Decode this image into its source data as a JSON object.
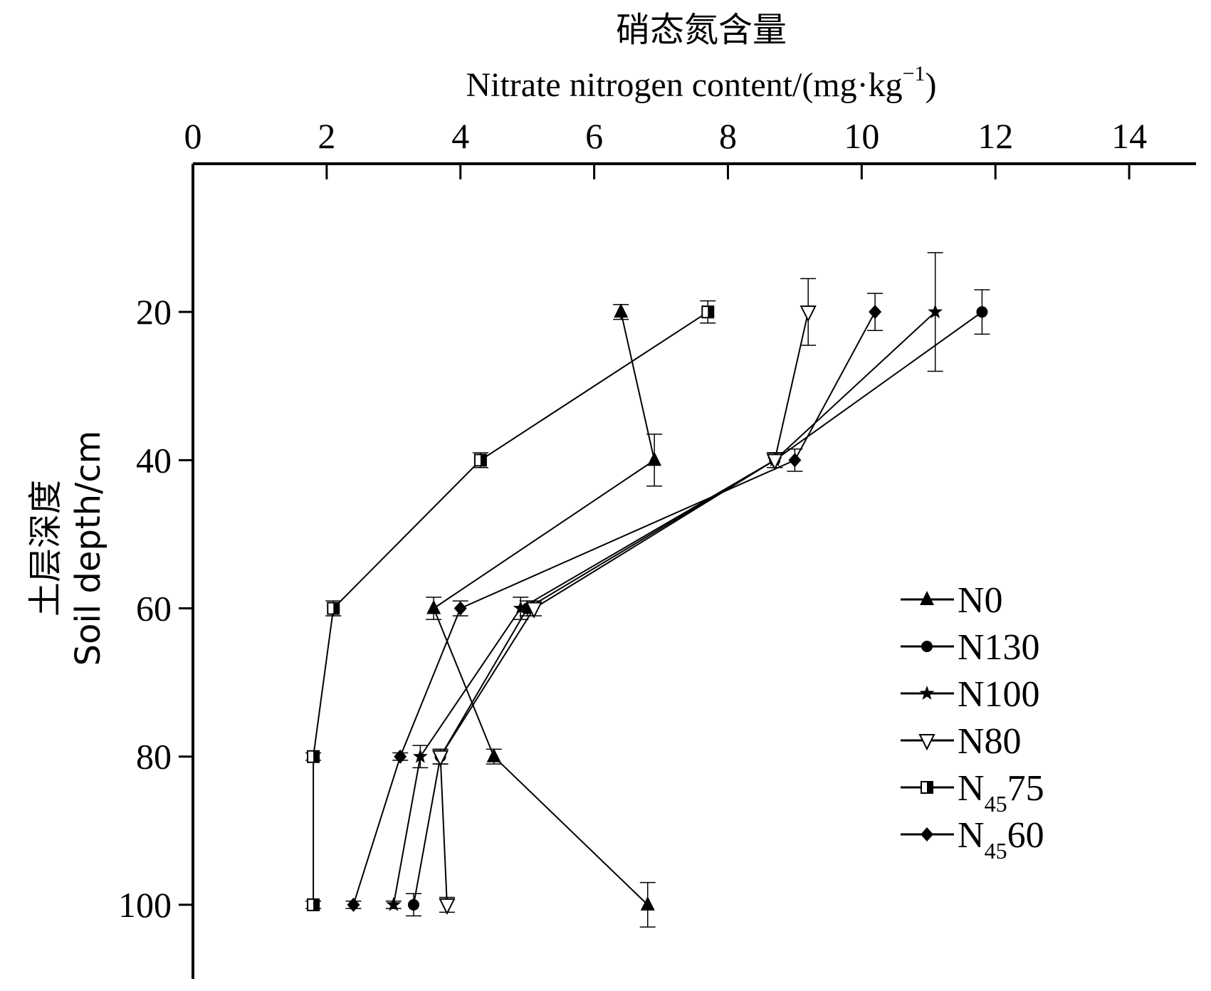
{
  "chart_data": {
    "type": "line",
    "orientation": "x-top-y-down",
    "title": "",
    "xlabel_cn": "硝态氮含量",
    "xlabel_en": "Nitrate nitrogen content/(mg·kg",
    "xlabel_en_sup": "−1",
    "xlabel_en_tail": ")",
    "ylabel_cn": "土层深度",
    "ylabel_en": "Soil depth/cm",
    "xlim": [
      0,
      15
    ],
    "ylim": [
      0,
      110
    ],
    "x_ticks": [
      0,
      2,
      4,
      6,
      8,
      10,
      12,
      14
    ],
    "x_tick_labels": [
      "0",
      "2",
      "4",
      "6",
      "8",
      "10",
      "12",
      "14"
    ],
    "y_ticks": [
      20,
      40,
      60,
      80,
      100
    ],
    "y_tick_labels": [
      "20",
      "40",
      "60",
      "80",
      "100"
    ],
    "legend_position": "right",
    "series": [
      {
        "name": "N0",
        "legend_main": "N0",
        "legend_sub": "",
        "legend_tail": "",
        "marker": "triangle-up",
        "depth": [
          20,
          40,
          60,
          80,
          100
        ],
        "values": [
          6.4,
          6.9,
          3.6,
          4.5,
          6.8
        ],
        "err": [
          0.1,
          0.35,
          0.15,
          0.1,
          0.3
        ]
      },
      {
        "name": "N130",
        "legend_main": "N130",
        "legend_sub": "",
        "legend_tail": "",
        "marker": "circle",
        "depth": [
          20,
          40,
          60,
          80,
          100
        ],
        "values": [
          11.8,
          8.7,
          5.0,
          3.7,
          3.3
        ],
        "err": [
          0.3,
          0.1,
          0.1,
          0.1,
          0.15
        ]
      },
      {
        "name": "N100",
        "legend_main": "N100",
        "legend_sub": "",
        "legend_tail": "",
        "marker": "star",
        "depth": [
          20,
          40,
          60,
          80,
          100
        ],
        "values": [
          11.1,
          8.7,
          4.9,
          3.4,
          3.0
        ],
        "err": [
          0.8,
          0.1,
          0.15,
          0.15,
          0.05
        ]
      },
      {
        "name": "N80",
        "legend_main": "N80",
        "legend_sub": "",
        "legend_tail": "",
        "marker": "triangle-down",
        "depth": [
          20,
          40,
          60,
          80,
          100
        ],
        "values": [
          9.2,
          8.7,
          5.1,
          3.7,
          3.8
        ],
        "err": [
          0.45,
          0.1,
          0.1,
          0.1,
          0.1
        ]
      },
      {
        "name": "N45 75",
        "legend_main": "N",
        "legend_sub": "45",
        "legend_tail": "75",
        "marker": "half-square",
        "depth": [
          20,
          40,
          60,
          80,
          100
        ],
        "values": [
          7.7,
          4.3,
          2.1,
          1.8,
          1.8
        ],
        "err": [
          0.15,
          0.1,
          0.1,
          0.05,
          0.05
        ]
      },
      {
        "name": "N45 60",
        "legend_main": "N",
        "legend_sub": "45",
        "legend_tail": "60",
        "marker": "diamond",
        "depth": [
          20,
          40,
          60,
          80,
          100
        ],
        "values": [
          10.2,
          9.0,
          4.0,
          3.1,
          2.4
        ],
        "err": [
          0.25,
          0.15,
          0.1,
          0.05,
          0.05
        ]
      }
    ]
  }
}
